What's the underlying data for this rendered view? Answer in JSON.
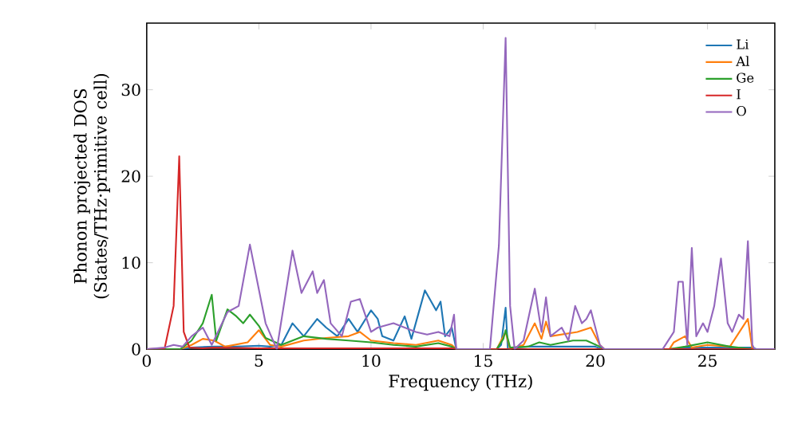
{
  "chart_data": {
    "type": "line",
    "xlabel": "Frequency (THz)",
    "ylabel": "Phonon projected DOS (States/THz·primitive cell)",
    "xlim": [
      0,
      28
    ],
    "ylim": [
      0,
      37.7
    ],
    "xticks": [
      0,
      5,
      10,
      15,
      20,
      25
    ],
    "yticks": [
      0,
      10,
      20,
      30
    ],
    "legend": "top right",
    "marker": "none",
    "line_style": "solid",
    "series": [
      {
        "name": "Li",
        "color": "#1f77b4",
        "x": [
          0,
          1.5,
          2,
          3,
          4,
          5,
          5.5,
          6,
          6.5,
          7,
          7.6,
          8,
          8.5,
          9,
          9.4,
          10,
          10.3,
          10.5,
          11,
          11.5,
          11.8,
          12.4,
          12.9,
          13.1,
          13.3,
          13.6,
          13.8,
          15.6,
          15.8,
          16,
          16.1,
          16.5,
          17,
          18,
          19,
          20,
          20.3,
          23.3,
          24,
          25,
          26,
          27,
          27.2,
          28
        ],
        "values": [
          0,
          0,
          0.2,
          0.3,
          0.3,
          0.4,
          0.3,
          0.5,
          3,
          1.5,
          3.5,
          2.5,
          1.5,
          3.5,
          2,
          4.5,
          3.5,
          1.5,
          1,
          3.8,
          1.2,
          6.8,
          4.5,
          5.5,
          1.5,
          2.5,
          0,
          0,
          0.5,
          4.8,
          0,
          0.2,
          0.3,
          0.3,
          0.3,
          0.3,
          0,
          0,
          0.2,
          0.2,
          0.2,
          0.2,
          0,
          0
        ]
      },
      {
        "name": "Al",
        "color": "#ff7f0e",
        "x": [
          0,
          1.5,
          2,
          2.5,
          3,
          3.5,
          4.5,
          5,
          5.5,
          6,
          7,
          8,
          9,
          9.5,
          10,
          11,
          12,
          13,
          13.6,
          13.8,
          15.6,
          16,
          16.2,
          16.8,
          17.3,
          17.6,
          17.8,
          18,
          19.2,
          19.8,
          20.2,
          20.4,
          23.3,
          23.5,
          24,
          24.3,
          25,
          26,
          26.8,
          27,
          28
        ],
        "values": [
          0,
          0,
          0.5,
          1.2,
          1,
          0.3,
          0.8,
          2.2,
          0.5,
          0.3,
          1,
          1.3,
          1.5,
          2,
          1,
          0.7,
          0.5,
          1,
          0.5,
          0,
          0,
          2,
          0,
          0.5,
          3,
          1.2,
          3.2,
          1.5,
          2,
          2.5,
          0.5,
          0,
          0,
          0.8,
          1.5,
          0.2,
          0.5,
          0.3,
          3.5,
          0,
          0
        ]
      },
      {
        "name": "Ge",
        "color": "#2ca02c",
        "x": [
          0,
          1.5,
          2,
          2.5,
          2.9,
          3.1,
          3.6,
          4,
          4.3,
          4.6,
          5,
          5.3,
          6,
          7,
          8,
          9,
          10,
          11,
          12,
          13,
          13.6,
          13.8,
          15.6,
          15.9,
          16,
          16.2,
          17,
          17.5,
          18,
          19,
          19.6,
          20.2,
          20.4,
          23.3,
          24,
          25,
          26,
          27,
          28
        ],
        "values": [
          0,
          0,
          1,
          3,
          6.3,
          1,
          4.6,
          3.8,
          3,
          4,
          2.7,
          1.3,
          0.5,
          1.5,
          1.2,
          1,
          0.8,
          0.5,
          0.3,
          0.7,
          0.3,
          0,
          0,
          1.2,
          2.2,
          0.2,
          0.3,
          0.8,
          0.5,
          1,
          1,
          0.3,
          0,
          0,
          0.3,
          0.8,
          0.3,
          0,
          0
        ]
      },
      {
        "name": "I",
        "color": "#d62728",
        "x": [
          0,
          0.8,
          1.2,
          1.45,
          1.65,
          1.9,
          2.5,
          3,
          5,
          10,
          13.6,
          13.8,
          28
        ],
        "values": [
          0,
          0.1,
          5,
          22.3,
          2,
          0.2,
          0.1,
          0.2,
          0.1,
          0.1,
          0.1,
          0,
          0
        ]
      },
      {
        "name": "O",
        "color": "#9467bd",
        "x": [
          0,
          0.8,
          1.2,
          1.6,
          2,
          2.5,
          2.9,
          3.6,
          4.1,
          4.6,
          5.3,
          5.8,
          6.5,
          6.9,
          7.4,
          7.6,
          7.9,
          8.2,
          8.7,
          9.1,
          9.5,
          10,
          10.3,
          11,
          12,
          12.5,
          13,
          13.5,
          13.7,
          13.8,
          15.3,
          15.7,
          16,
          16.2,
          16.4,
          16.8,
          17.3,
          17.6,
          17.8,
          18,
          18.5,
          18.8,
          19.1,
          19.4,
          19.6,
          19.8,
          20.2,
          20.4,
          23,
          23.5,
          23.7,
          23.9,
          24.1,
          24.3,
          24.5,
          24.8,
          25,
          25.3,
          25.6,
          25.9,
          26.1,
          26.4,
          26.6,
          26.8,
          27,
          27.1,
          28
        ],
        "values": [
          0,
          0.2,
          0.5,
          0.3,
          1.5,
          2.5,
          0.5,
          4.3,
          5,
          12.1,
          3,
          0,
          11.4,
          6.5,
          9,
          6.5,
          8,
          3,
          1.5,
          5.5,
          5.8,
          2,
          2.5,
          3,
          2,
          1.7,
          2,
          1.5,
          4,
          0,
          0,
          12,
          36,
          5,
          0,
          1,
          7,
          2,
          6,
          1.5,
          2.5,
          1,
          5,
          3,
          3.5,
          4.5,
          0.5,
          0,
          0,
          2,
          7.8,
          7.8,
          0.5,
          11.7,
          1.5,
          3,
          2,
          5,
          10.5,
          3,
          2,
          4,
          3.5,
          12.5,
          0.5,
          0,
          0
        ]
      }
    ]
  }
}
